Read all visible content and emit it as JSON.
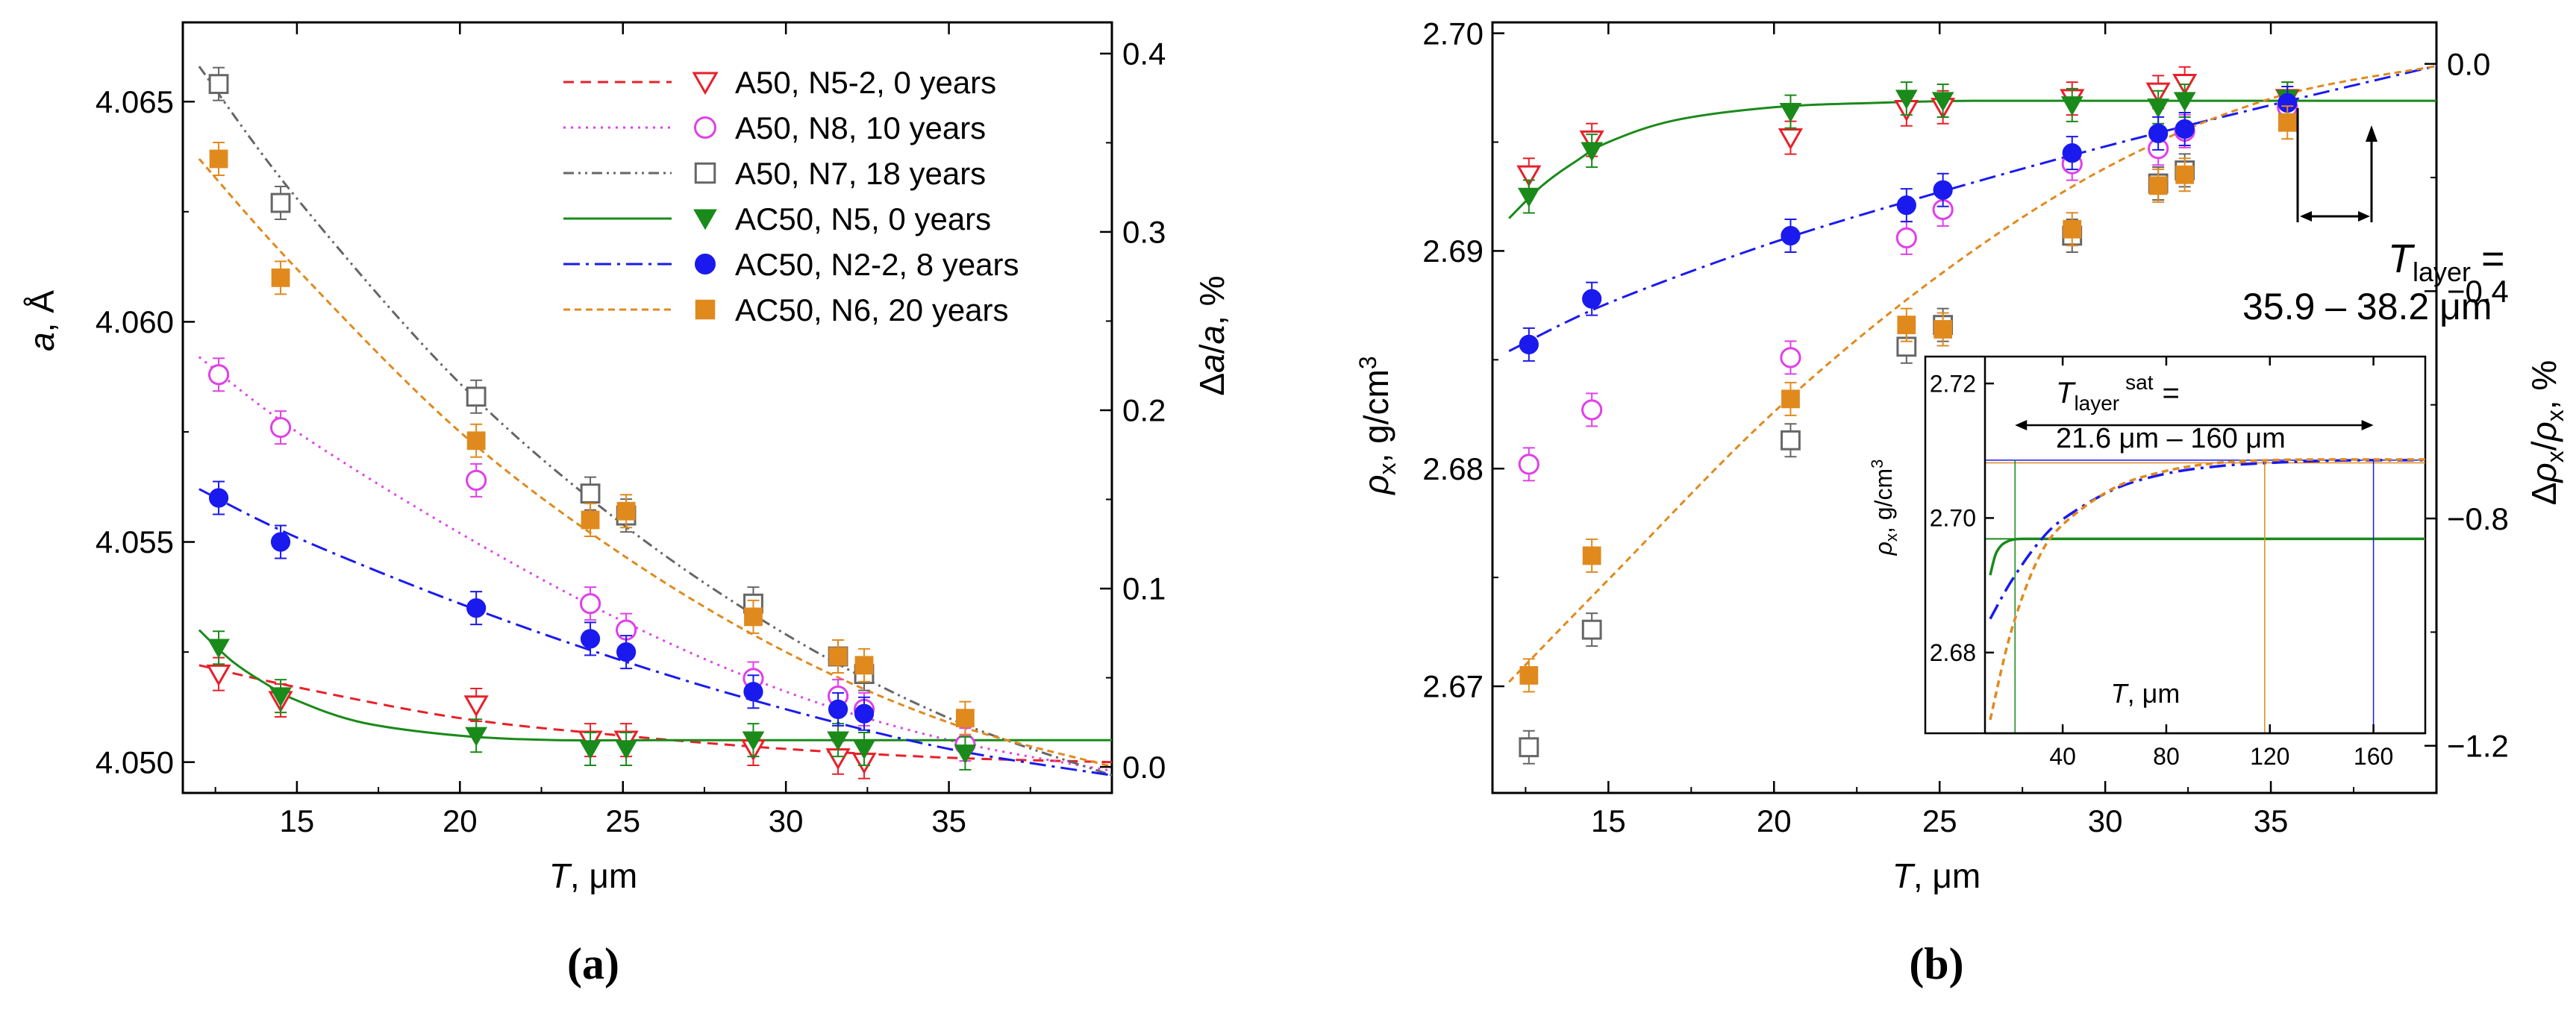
{
  "figure": {
    "panel_a_label": "(a)",
    "panel_b_label": "(b)"
  },
  "chart_data": [
    {
      "panel": "a",
      "type": "scatter",
      "xlabel": "T, μm",
      "ylabel": "a, Å",
      "y2label": "Δa/a, %",
      "xlim": [
        11.5,
        40
      ],
      "ylim": [
        4.0493,
        4.0668
      ],
      "y2lim": [
        -0.0146,
        0.4175
      ],
      "xticks": [
        15,
        20,
        25,
        30,
        35
      ],
      "yticks": [
        4.05,
        4.055,
        4.06,
        4.065
      ],
      "y2ticks": [
        0.0,
        0.1,
        0.2,
        0.3,
        0.4
      ],
      "xtick_labels": [
        "15",
        "20",
        "25",
        "30",
        "35"
      ],
      "ytick_labels": [
        "4.050",
        "4.055",
        "4.060",
        "4.065"
      ],
      "y2tick_labels": [
        "0.0",
        "0.1",
        "0.2",
        "0.3",
        "0.4"
      ],
      "legend_position": "top-right",
      "series": [
        {
          "name": "A50, N5-2, 0 years",
          "color": "#e8202a",
          "marker": "triangle-down-open",
          "line": "dashed",
          "x": [
            12.6,
            14.5,
            20.5,
            24.0,
            25.1,
            29.0,
            31.6,
            32.4
          ],
          "y": [
            4.052,
            4.0514,
            4.0513,
            4.0505,
            4.0505,
            4.0503,
            4.0501,
            4.05
          ],
          "fit_x": [
            12,
            15,
            20,
            25,
            30,
            35,
            40
          ],
          "fit_y": [
            4.0522,
            4.0517,
            4.051,
            4.0506,
            4.0503,
            4.0501,
            4.05
          ]
        },
        {
          "name": "A50, N8, 10 years",
          "color": "#e040e8",
          "marker": "circle-open",
          "line": "dotted",
          "x": [
            12.6,
            14.5,
            20.5,
            24.0,
            25.1,
            29.0,
            31.6,
            32.4,
            35.5
          ],
          "y": [
            4.0588,
            4.0576,
            4.0564,
            4.0536,
            4.053,
            4.0519,
            4.0515,
            4.0512,
            4.0504
          ],
          "fit_x": [
            12,
            15,
            20,
            25,
            30,
            35,
            40
          ],
          "fit_y": [
            4.0592,
            4.0575,
            4.0552,
            4.0532,
            4.0516,
            4.0505,
            4.0498
          ]
        },
        {
          "name": "A50, N7, 18 years",
          "color": "#666666",
          "marker": "square-open",
          "line": "dash-dot-dot",
          "x": [
            12.6,
            14.5,
            20.5,
            24.0,
            25.1,
            29.0,
            31.6,
            32.4
          ],
          "y": [
            4.0654,
            4.0627,
            4.0583,
            4.0561,
            4.0556,
            4.0536,
            4.0524,
            4.052
          ],
          "fit_x": [
            12,
            15,
            20,
            25,
            30,
            35,
            40
          ],
          "fit_y": [
            4.0658,
            4.0628,
            4.0586,
            4.0554,
            4.0529,
            4.051,
            4.0497
          ]
        },
        {
          "name": "AC50, N5, 0 years",
          "color": "#1a8a1a",
          "marker": "triangle-down-filled",
          "line": "solid",
          "x": [
            12.6,
            14.5,
            20.5,
            24.0,
            25.1,
            29.0,
            31.6,
            32.4,
            35.5
          ],
          "y": [
            4.0526,
            4.0515,
            4.0506,
            4.0503,
            4.0503,
            4.0505,
            4.0505,
            4.0503,
            4.0502
          ],
          "fit_x": [
            12,
            13,
            14,
            15,
            17,
            20,
            23,
            26,
            30,
            35,
            40
          ],
          "fit_y": [
            4.053,
            4.0523,
            4.0518,
            4.0514,
            4.0509,
            4.0506,
            4.0505,
            4.0505,
            4.0505,
            4.0505,
            4.0505
          ]
        },
        {
          "name": "AC50, N2-2, 8 years",
          "color": "#1a1aee",
          "marker": "circle-filled",
          "line": "dash-dot",
          "x": [
            12.6,
            14.5,
            20.5,
            24.0,
            25.1,
            29.0,
            31.6,
            32.4
          ],
          "y": [
            4.056,
            4.055,
            4.0535,
            4.0528,
            4.0525,
            4.0516,
            4.0512,
            4.0511
          ],
          "fit_x": [
            12,
            15,
            20,
            25,
            30,
            35,
            40
          ],
          "fit_y": [
            4.0562,
            4.0551,
            4.0536,
            4.0523,
            4.0512,
            4.0503,
            4.0497
          ]
        },
        {
          "name": "AC50, N6, 20 years",
          "color": "#e08a1e",
          "marker": "square-filled",
          "line": "short-dashed",
          "x": [
            12.6,
            14.5,
            20.5,
            24.0,
            25.1,
            29.0,
            31.6,
            32.4,
            35.5
          ],
          "y": [
            4.0637,
            4.061,
            4.0573,
            4.0555,
            4.0557,
            4.0533,
            4.0524,
            4.0522,
            4.051
          ],
          "fit_x": [
            12,
            15,
            20,
            25,
            30,
            35,
            40
          ],
          "fit_y": [
            4.0637,
            4.0612,
            4.0575,
            4.0547,
            4.0525,
            4.0509,
            4.0499
          ]
        }
      ]
    },
    {
      "panel": "b",
      "type": "scatter",
      "xlabel": "T, μm",
      "ylabel": "ρx, g/cm3",
      "y2label": "Δρx/ρx, %",
      "xlim": [
        11.5,
        40
      ],
      "ylim": [
        2.6651,
        2.7005
      ],
      "y2lim": [
        -1.283,
        0.073
      ],
      "xticks": [
        15,
        20,
        25,
        30,
        35
      ],
      "yticks": [
        2.67,
        2.68,
        2.69,
        2.7
      ],
      "y2ticks": [
        -1.2,
        -0.8,
        -0.4,
        0.0
      ],
      "xtick_labels": [
        "15",
        "20",
        "25",
        "30",
        "35"
      ],
      "ytick_labels": [
        "2.67",
        "2.68",
        "2.69",
        "2.70"
      ],
      "y2tick_labels": [
        "−1.2",
        "−0.8",
        "−0.4",
        "0.0"
      ],
      "annotation": {
        "prefix": "T",
        "subscript": "layer",
        "equals": "=",
        "value": "35.9 – 38.2 μm"
      },
      "series": [
        {
          "name": "A50, N5-2, 0 years",
          "color": "#e8202a",
          "marker": "triangle-down-open",
          "x": [
            12.6,
            14.5,
            20.5,
            24.0,
            25.1,
            29.0,
            31.6,
            32.4,
            35.5
          ],
          "y": [
            2.6935,
            2.6951,
            2.6952,
            2.6965,
            2.6966,
            2.697,
            2.6973,
            2.6977,
            2.697
          ]
        },
        {
          "name": "A50, N8, 10 years",
          "color": "#e040e8",
          "marker": "circle-open",
          "x": [
            12.6,
            14.5,
            20.5,
            24.0,
            25.1,
            29.0,
            31.6,
            32.4,
            35.5
          ],
          "y": [
            2.6802,
            2.6827,
            2.6851,
            2.6906,
            2.6919,
            2.694,
            2.6947,
            2.6955,
            2.6966
          ]
        },
        {
          "name": "A50, N7, 18 years",
          "color": "#666666",
          "marker": "square-open",
          "x": [
            12.6,
            14.5,
            20.5,
            24.0,
            25.1,
            29.0,
            31.6,
            32.4
          ],
          "y": [
            2.6672,
            2.6726,
            2.6813,
            2.6856,
            2.6866,
            2.6907,
            2.6931,
            2.6937
          ]
        },
        {
          "name": "AC50, N5, 0 years",
          "color": "#1a8a1a",
          "marker": "triangle-down-filled",
          "line": "solid",
          "x": [
            12.6,
            14.5,
            20.5,
            24.0,
            25.1,
            29.0,
            31.6,
            32.4,
            35.5
          ],
          "y": [
            2.6925,
            2.6946,
            2.6964,
            2.697,
            2.6969,
            2.6967,
            2.6966,
            2.6969,
            2.697
          ],
          "fit_x": [
            12,
            13,
            14,
            15,
            17,
            20,
            23,
            26,
            30,
            35,
            40
          ],
          "fit_y": [
            2.6915,
            2.693,
            2.6941,
            2.695,
            2.696,
            2.6966,
            2.6968,
            2.6969,
            2.6969,
            2.6969,
            2.6969
          ]
        },
        {
          "name": "AC50, N2-2, 8 years",
          "color": "#1a1aee",
          "marker": "circle-filled",
          "line": "dash-dot",
          "x": [
            12.6,
            14.5,
            20.5,
            24.0,
            25.1,
            29.0,
            31.6,
            32.4,
            35.5
          ],
          "y": [
            2.6857,
            2.6878,
            2.6907,
            2.6921,
            2.6928,
            2.6945,
            2.6954,
            2.6956,
            2.6968
          ],
          "fit_x": [
            12,
            15,
            20,
            25,
            30,
            35,
            40
          ],
          "fit_y": [
            2.6854,
            2.6876,
            2.6904,
            2.6927,
            2.6948,
            2.6967,
            2.6985
          ]
        },
        {
          "name": "AC50, N6, 20 years",
          "color": "#e08a1e",
          "marker": "square-filled",
          "line": "short-dashed",
          "x": [
            12.6,
            14.5,
            20.5,
            24.0,
            25.1,
            29.0,
            31.6,
            32.4,
            35.5
          ],
          "y": [
            2.6705,
            2.676,
            2.6832,
            2.6866,
            2.6864,
            2.691,
            2.693,
            2.6935,
            2.6959
          ],
          "fit_x": [
            12,
            15,
            20,
            25,
            30,
            35,
            40
          ],
          "fit_y": [
            2.6702,
            2.6749,
            2.6826,
            2.6889,
            2.6938,
            2.697,
            2.6985
          ]
        }
      ]
    },
    {
      "panel": "b-inset",
      "type": "line",
      "xlabel": "T, μm",
      "ylabel": "ρx, g/cm3",
      "xlim": [
        10,
        180
      ],
      "ylim": [
        2.668,
        2.724
      ],
      "xticks": [
        40,
        80,
        120,
        160
      ],
      "yticks": [
        2.68,
        2.7,
        2.72
      ],
      "xtick_labels": [
        "40",
        "80",
        "120",
        "160"
      ],
      "ytick_labels": [
        "2.68",
        "2.70",
        "2.72"
      ],
      "annotation": {
        "prefix": "T",
        "subscript": "layer",
        "superscript": "sat",
        "equals": "=",
        "value": "21.6 μm – 160 μm"
      },
      "series": [
        {
          "name": "green",
          "color": "#1a8a1a",
          "line": "solid",
          "x": [
            12,
            14,
            16,
            18,
            21,
            25,
            30,
            60,
            100,
            140,
            180
          ],
          "y": [
            2.6915,
            2.6945,
            2.6958,
            2.6964,
            2.6968,
            2.6969,
            2.6969,
            2.6969,
            2.6969,
            2.6969,
            2.6969
          ],
          "sat_x": 21.6
        },
        {
          "name": "blue",
          "color": "#1a1aee",
          "line": "dash-dot",
          "x": [
            12,
            20,
            30,
            40,
            60,
            80,
            100,
            120,
            140,
            160,
            180
          ],
          "y": [
            2.685,
            2.6905,
            2.696,
            2.6998,
            2.7043,
            2.7066,
            2.7077,
            2.7082,
            2.7085,
            2.7086,
            2.7086
          ],
          "sat_x": 160
        },
        {
          "name": "orange",
          "color": "#e08a1e",
          "line": "short-dashed",
          "x": [
            12,
            20,
            30,
            40,
            60,
            80,
            100,
            120,
            140,
            160,
            180
          ],
          "y": [
            2.67,
            2.683,
            2.6935,
            2.699,
            2.7045,
            2.707,
            2.7082,
            2.7086,
            2.7087,
            2.7087,
            2.7087
          ],
          "sat_x": 118
        }
      ]
    }
  ]
}
